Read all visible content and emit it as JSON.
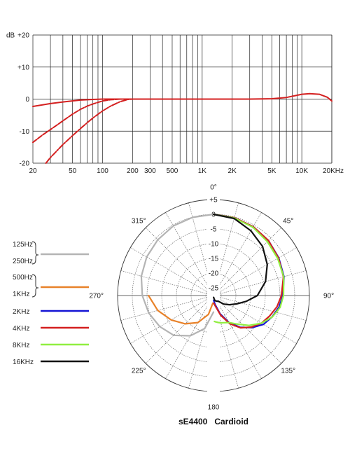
{
  "chart_data": [
    {
      "type": "line",
      "xscale": "log",
      "xlim": [
        20,
        20000
      ],
      "ylim": [
        -20,
        20
      ],
      "ylabel": "dB",
      "grid": true,
      "x_ticks": [
        {
          "v": 20,
          "label": "20"
        },
        {
          "v": 50,
          "label": "50"
        },
        {
          "v": 100,
          "label": "100"
        },
        {
          "v": 200,
          "label": "200"
        },
        {
          "v": 300,
          "label": "300"
        },
        {
          "v": 500,
          "label": "500"
        },
        {
          "v": 1000,
          "label": "1K"
        },
        {
          "v": 2000,
          "label": "2K"
        },
        {
          "v": 5000,
          "label": "5K"
        },
        {
          "v": 10000,
          "label": "10K"
        },
        {
          "v": 20000,
          "label": "20KHz"
        }
      ],
      "y_ticks": [
        {
          "v": 20,
          "label": "+20"
        },
        {
          "v": 10,
          "label": "+10"
        },
        {
          "v": 0,
          "label": "0"
        },
        {
          "v": -10,
          "label": "-10"
        },
        {
          "v": -20,
          "label": "-20"
        }
      ],
      "series": [
        {
          "style": "solid",
          "color": "#d42020",
          "x": [
            20,
            30,
            40,
            60,
            80,
            100,
            150,
            200,
            500,
            1000,
            3000,
            5000,
            7000,
            9000,
            10000,
            12000,
            15000,
            18000,
            20000
          ],
          "y": [
            -2.3,
            -1.4,
            -0.9,
            -0.3,
            -0.1,
            0,
            0,
            0,
            0,
            0,
            0,
            0.1,
            0.5,
            1.2,
            1.5,
            1.7,
            1.5,
            0.6,
            -0.6
          ]
        },
        {
          "style": "dashed",
          "color": "#d42020",
          "x": [
            20,
            25,
            30,
            40,
            50,
            60,
            70,
            80,
            100,
            120,
            150,
            200
          ],
          "y": [
            -13.5,
            -11.2,
            -9.5,
            -6.8,
            -4.7,
            -3.2,
            -2.2,
            -1.5,
            -0.6,
            -0.2,
            0,
            0
          ]
        },
        {
          "style": "dashdot",
          "color": "#d42020",
          "x": [
            27,
            30,
            40,
            50,
            60,
            70,
            80,
            100,
            120,
            150,
            180,
            200
          ],
          "y": [
            -20,
            -18.2,
            -14.2,
            -11.4,
            -9.2,
            -7.4,
            -5.9,
            -3.7,
            -2.2,
            -0.8,
            -0.1,
            0
          ]
        }
      ]
    },
    {
      "type": "polar",
      "title": "sE4400   Cardioid",
      "radial_ticks": [
        {
          "v": 5,
          "label": "+5"
        },
        {
          "v": 0,
          "label": "0"
        },
        {
          "v": -5,
          "label": "-5"
        },
        {
          "v": -10,
          "label": "-10"
        },
        {
          "v": -15,
          "label": "-15"
        },
        {
          "v": -20,
          "label": "-20"
        },
        {
          "v": -25,
          "label": "-25"
        }
      ],
      "rlim": [
        -30,
        5
      ],
      "angle_labels": [
        {
          "angle": 0,
          "label": "0°"
        },
        {
          "angle": 45,
          "label": "45°"
        },
        {
          "angle": 90,
          "label": "90°"
        },
        {
          "angle": 135,
          "label": "135°"
        },
        {
          "angle": 180,
          "label": "180"
        },
        {
          "angle": 225,
          "label": "225°"
        },
        {
          "angle": 270,
          "label": "270°"
        },
        {
          "angle": 315,
          "label": "315°"
        }
      ],
      "legend_groups": [
        {
          "labels": [
            "125Hz",
            "250Hz"
          ],
          "color": "#b4b4b4"
        },
        {
          "labels": [
            "500Hz",
            "1KHz"
          ],
          "color": "#e8822a"
        }
      ],
      "legend_items": [
        {
          "label": "2KHz",
          "color": "#1414d4"
        },
        {
          "label": "4KHz",
          "color": "#d42020"
        },
        {
          "label": "8KHz",
          "color": "#90ee40"
        },
        {
          "label": "16KHz",
          "color": "#111111"
        }
      ],
      "series": [
        {
          "name": "125Hz / 250Hz",
          "color": "#b4b4b4",
          "side": "left",
          "angles": [
            0,
            15,
            30,
            45,
            60,
            75,
            90,
            105,
            120,
            135,
            150,
            165,
            180
          ],
          "db": [
            0,
            -0.1,
            -0.3,
            -0.8,
            -1.4,
            -2.2,
            -3.4,
            -4.8,
            -6.5,
            -8.5,
            -11.8,
            -16,
            -22
          ]
        },
        {
          "name": "500Hz / 1KHz",
          "color": "#e8822a",
          "side": "left",
          "angles": [
            90,
            105,
            120,
            135,
            150,
            165,
            175
          ],
          "db": [
            -5.5,
            -8,
            -11,
            -14,
            -17,
            -21,
            -25
          ]
        },
        {
          "name": "2KHz",
          "color": "#1414d4",
          "side": "right",
          "angles": [
            0,
            15,
            30,
            45,
            60,
            75,
            90,
            100,
            110,
            120,
            130,
            140,
            150,
            160,
            170,
            178
          ],
          "db": [
            0,
            -0.2,
            -0.6,
            -1.2,
            -2,
            -2.8,
            -4,
            -5,
            -6.4,
            -8,
            -10.6,
            -13.5,
            -17,
            -21,
            -24.5,
            -26
          ]
        },
        {
          "name": "4KHz",
          "color": "#d42020",
          "side": "right",
          "angles": [
            0,
            15,
            30,
            45,
            60,
            75,
            90,
            100,
            110,
            120,
            130,
            140,
            150,
            160,
            170,
            178
          ],
          "db": [
            0,
            -0.2,
            -0.6,
            -1.2,
            -2.1,
            -3,
            -4.5,
            -5.7,
            -7.3,
            -8.8,
            -10.9,
            -13.3,
            -16.5,
            -20.5,
            -24,
            -25
          ]
        },
        {
          "name": "8KHz",
          "color": "#90ee40",
          "side": "right",
          "angles": [
            0,
            15,
            30,
            45,
            60,
            75,
            90,
            100,
            110,
            120,
            130,
            140,
            150,
            160,
            165,
            170,
            175,
            178
          ],
          "db": [
            0,
            -0.3,
            -0.8,
            -1.7,
            -2.4,
            -2.9,
            -3.8,
            -4.6,
            -6.3,
            -8.8,
            -11.8,
            -14.9,
            -17,
            -17.8,
            -18,
            -18.3,
            -18.6,
            -18.8
          ]
        },
        {
          "name": "16KHz",
          "color": "#111111",
          "side": "right",
          "angles": [
            0,
            15,
            30,
            45,
            60,
            75,
            90,
            100,
            110,
            120,
            130,
            140,
            150,
            160,
            165,
            170,
            175,
            178
          ],
          "db": [
            0,
            -0.5,
            -2.2,
            -4,
            -6.5,
            -9.3,
            -12.7,
            -16.3,
            -19.3,
            -21.4,
            -23.1,
            -25.1,
            -25.4,
            -25.7,
            -25.9,
            -26.5,
            -27,
            -27
          ]
        }
      ]
    }
  ]
}
